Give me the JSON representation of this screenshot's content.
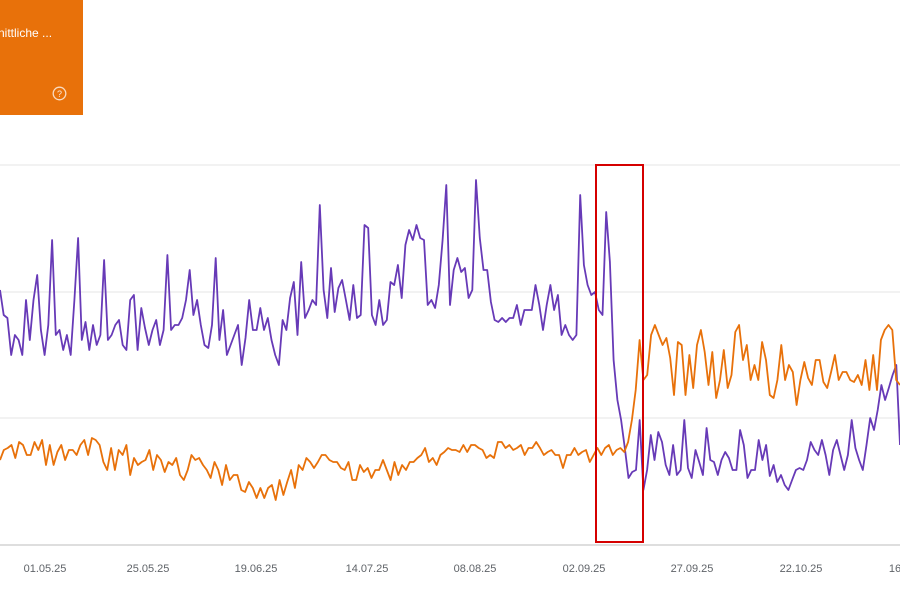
{
  "metric_card": {
    "label": "nittliche ...",
    "color": "#e8710a",
    "icon": "help-circle-icon",
    "selected": true
  },
  "chart_data": {
    "type": "line",
    "x_ticks": [
      "01.05.25",
      "25.05.25",
      "19.06.25",
      "14.07.25",
      "08.08.25",
      "02.09.25",
      "27.09.25",
      "22.10.25",
      "16"
    ],
    "grid": true,
    "y_axis_labels_visible": false,
    "series": [
      {
        "color": "#673ab7",
        "values": [
          290,
          315,
          318,
          355,
          335,
          340,
          355,
          300,
          340,
          300,
          275,
          330,
          355,
          325,
          240,
          335,
          330,
          350,
          335,
          355,
          300,
          238,
          340,
          322,
          350,
          325,
          345,
          335,
          260,
          340,
          335,
          325,
          320,
          345,
          350,
          300,
          295,
          350,
          308,
          328,
          345,
          330,
          320,
          345,
          330,
          255,
          330,
          325,
          325,
          318,
          300,
          270,
          315,
          300,
          325,
          345,
          348,
          325,
          258,
          340,
          310,
          355,
          345,
          335,
          325,
          365,
          338,
          300,
          330,
          330,
          308,
          330,
          318,
          340,
          355,
          365,
          320,
          330,
          298,
          282,
          335,
          262,
          318,
          310,
          300,
          305,
          205,
          290,
          318,
          268,
          312,
          288,
          280,
          300,
          320,
          285,
          318,
          315,
          225,
          228,
          315,
          325,
          300,
          325,
          320,
          282,
          285,
          265,
          298,
          245,
          230,
          240,
          225,
          238,
          240,
          305,
          300,
          308,
          285,
          240,
          185,
          305,
          270,
          258,
          272,
          268,
          298,
          290,
          180,
          238,
          270,
          270,
          302,
          320,
          322,
          318,
          322,
          318,
          318,
          305,
          325,
          310,
          310,
          310,
          285,
          305,
          330,
          305,
          285,
          310,
          295,
          335,
          325,
          335,
          340,
          335,
          195,
          265,
          285,
          295,
          292,
          310,
          315,
          212,
          262,
          360,
          400,
          420,
          448,
          478,
          472,
          470,
          420,
          490,
          470,
          435,
          460,
          432,
          442,
          465,
          475,
          445,
          475,
          470,
          420,
          468,
          478,
          450,
          462,
          475,
          428,
          460,
          462,
          475,
          460,
          452,
          458,
          470,
          470,
          430,
          445,
          478,
          470,
          470,
          440,
          460,
          445,
          476,
          465,
          482,
          475,
          485,
          490,
          480,
          470,
          468,
          470,
          460,
          442,
          450,
          455,
          440,
          455,
          475,
          450,
          440,
          455,
          470,
          455,
          420,
          448,
          460,
          470,
          445,
          418,
          430,
          410,
          385,
          400,
          388,
          375,
          365,
          445
        ],
        "visible_count": 172
      },
      {
        "color": "#e8710a",
        "values": [
          460,
          450,
          448,
          445,
          458,
          442,
          445,
          455,
          455,
          442,
          450,
          440,
          465,
          445,
          465,
          452,
          445,
          460,
          450,
          450,
          455,
          445,
          440,
          455,
          438,
          440,
          445,
          462,
          470,
          448,
          470,
          450,
          455,
          445,
          475,
          458,
          465,
          462,
          460,
          450,
          470,
          455,
          460,
          472,
          462,
          465,
          458,
          475,
          480,
          470,
          455,
          460,
          458,
          465,
          470,
          478,
          462,
          470,
          485,
          465,
          480,
          475,
          475,
          490,
          492,
          482,
          488,
          498,
          488,
          498,
          488,
          485,
          500,
          480,
          495,
          482,
          470,
          488,
          465,
          470,
          458,
          462,
          468,
          462,
          455,
          455,
          460,
          462,
          462,
          468,
          470,
          462,
          480,
          480,
          465,
          472,
          468,
          478,
          470,
          470,
          460,
          470,
          480,
          462,
          475,
          465,
          470,
          462,
          462,
          458,
          455,
          448,
          462,
          458,
          465,
          455,
          452,
          448,
          450,
          450,
          452,
          445,
          452,
          445,
          445,
          448,
          450,
          458,
          455,
          458,
          442,
          442,
          448,
          445,
          450,
          448,
          445,
          455,
          448,
          448,
          442,
          448,
          455,
          452,
          450,
          455,
          455,
          468,
          455,
          455,
          448,
          455,
          452,
          450,
          462,
          455,
          448,
          455,
          448,
          445,
          455,
          450,
          448,
          452,
          442,
          420,
          390,
          340,
          380,
          375,
          335,
          325,
          335,
          345,
          338,
          358,
          395,
          342,
          345,
          395,
          355,
          388,
          345,
          330,
          352,
          385,
          352,
          398,
          380,
          350,
          388,
          375,
          332,
          325,
          360,
          345,
          380,
          365,
          380,
          342,
          360,
          395,
          398,
          380,
          345,
          380,
          365,
          372,
          405,
          380,
          362,
          378,
          385,
          360,
          360,
          382,
          388,
          372,
          355,
          380,
          372,
          372,
          380,
          382,
          375,
          385,
          360,
          390,
          355,
          390,
          340,
          330,
          325,
          330,
          380,
          385
        ],
        "visible_count": 0
      }
    ],
    "highlight_box": {
      "color": "#d50000"
    }
  }
}
